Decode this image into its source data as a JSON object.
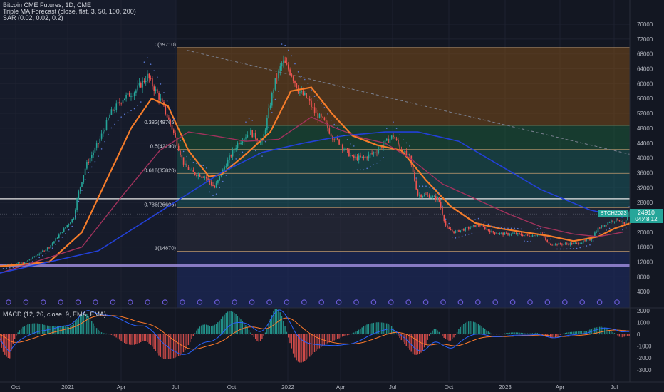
{
  "legend": {
    "title": "Bitcoin CME Futures, 1D, CME",
    "indicator1": "Triple MA Forecast (close, flat, 3, 50, 100, 200)",
    "indicator2": "SAR (0.02, 0.02, 0.2)"
  },
  "macd_label": "MACD (12, 26, close, 9, EMA, EMA)",
  "price_tag": {
    "symbol": "BTCH2023",
    "price": "24910",
    "countdown": "04:48:12"
  },
  "colors": {
    "background": "#131722",
    "grid": "#1e2230",
    "up": "#26a69a",
    "down": "#ef5350",
    "ma_fast": "#f57c2a",
    "ma_mid": "#a1325c",
    "ma_slow": "#2240d8",
    "sar": "#5b7ad8",
    "macd_line": "#2962ff",
    "signal_line": "#ff7a2b",
    "price_tag": "#26a69a",
    "axis_text": "#b2b5be"
  },
  "chart_data": [
    {
      "type": "line",
      "title": "Bitcoin CME Futures, 1D, CME",
      "yaxis_ticks": [
        4000,
        8000,
        12000,
        16000,
        20000,
        24000,
        28000,
        32000,
        36000,
        40000,
        44000,
        48000,
        52000,
        56000,
        60000,
        64000,
        68000,
        72000,
        76000
      ],
      "xaxis_ticks": [
        "Oct",
        "2021",
        "Apr",
        "Jul",
        "Oct",
        "2022",
        "Apr",
        "Jul",
        "Oct",
        "2023",
        "Apr",
        "Jul"
      ],
      "ylim": [
        0,
        80000
      ],
      "grid": true,
      "series": [
        {
          "values": [
            [
              0,
              11000
            ],
            [
              30,
              11800
            ],
            [
              60,
              16000
            ],
            [
              90,
              24000
            ],
            [
              95,
              30000
            ],
            [
              105,
              38000
            ],
            [
              120,
              44000
            ],
            [
              135,
              52000
            ],
            [
              150,
              56000
            ],
            [
              165,
              58000
            ],
            [
              180,
              62000
            ],
            [
              195,
              56000
            ],
            [
              210,
              48000
            ],
            [
              225,
              38000
            ],
            [
              235,
              36000
            ],
            [
              250,
              35000
            ],
            [
              262,
              32000
            ],
            [
              275,
              38000
            ],
            [
              290,
              44000
            ],
            [
              305,
              47000
            ],
            [
              320,
              44000
            ],
            [
              335,
              60000
            ],
            [
              345,
              66000
            ],
            [
              355,
              63000
            ],
            [
              365,
              58000
            ],
            [
              375,
              56000
            ],
            [
              385,
              52000
            ],
            [
              395,
              50000
            ],
            [
              405,
              46000
            ],
            [
              415,
              44000
            ],
            [
              430,
              40000
            ],
            [
              445,
              40000
            ],
            [
              460,
              42000
            ],
            [
              470,
              44000
            ],
            [
              480,
              46000
            ],
            [
              490,
              42000
            ],
            [
              500,
              40000
            ],
            [
              510,
              30000
            ],
            [
              520,
              30000
            ],
            [
              535,
              29000
            ],
            [
              545,
              21000
            ],
            [
              555,
              20000
            ],
            [
              570,
              21000
            ],
            [
              585,
              22000
            ],
            [
              600,
              20000
            ],
            [
              615,
              19500
            ],
            [
              630,
              19500
            ],
            [
              645,
              19000
            ],
            [
              660,
              19500
            ],
            [
              670,
              16800
            ],
            [
              690,
              16800
            ],
            [
              705,
              17000
            ],
            [
              720,
              18000
            ],
            [
              730,
              21000
            ],
            [
              745,
              23000
            ],
            [
              755,
              23500
            ],
            [
              762,
              22000
            ],
            [
              768,
              24900
            ]
          ]
        },
        {
          "values": [
            [
              0,
              10800
            ],
            [
              60,
              12000
            ],
            [
              100,
              20000
            ],
            [
              130,
              34000
            ],
            [
              160,
              48000
            ],
            [
              185,
              56000
            ],
            [
              205,
              54000
            ],
            [
              230,
              42000
            ],
            [
              255,
              35000
            ],
            [
              270,
              35500
            ],
            [
              300,
              41000
            ],
            [
              330,
              47000
            ],
            [
              355,
              58000
            ],
            [
              380,
              59000
            ],
            [
              405,
              52000
            ],
            [
              430,
              46000
            ],
            [
              460,
              43500
            ],
            [
              490,
              42000
            ],
            [
              520,
              34000
            ],
            [
              550,
              27000
            ],
            [
              580,
              22500
            ],
            [
              610,
              21000
            ],
            [
              640,
              20000
            ],
            [
              670,
              19000
            ],
            [
              700,
              17600
            ],
            [
              730,
              18800
            ],
            [
              750,
              21000
            ],
            [
              770,
              22500
            ]
          ]
        },
        {
          "values": [
            [
              0,
              9000
            ],
            [
              100,
              16000
            ],
            [
              150,
              30000
            ],
            [
              195,
              42000
            ],
            [
              230,
              47000
            ],
            [
              260,
              46000
            ],
            [
              300,
              44500
            ],
            [
              340,
              45000
            ],
            [
              380,
              51000
            ],
            [
              410,
              48000
            ],
            [
              440,
              45500
            ],
            [
              470,
              44000
            ],
            [
              500,
              40000
            ],
            [
              540,
              33000
            ],
            [
              580,
              29000
            ],
            [
              620,
              25000
            ],
            [
              660,
              21500
            ],
            [
              700,
              19500
            ],
            [
              730,
              18800
            ],
            [
              760,
              20000
            ]
          ]
        },
        {
          "values": [
            [
              0,
              9000
            ],
            [
              120,
              15000
            ],
            [
              170,
              22000
            ],
            [
              220,
              29000
            ],
            [
              270,
              36000
            ],
            [
              320,
              41500
            ],
            [
              370,
              44000
            ],
            [
              420,
              46000
            ],
            [
              470,
              47000
            ],
            [
              510,
              47000
            ],
            [
              560,
              44500
            ],
            [
              610,
              38000
            ],
            [
              660,
              31500
            ],
            [
              720,
              26000
            ],
            [
              760,
              24000
            ]
          ]
        }
      ],
      "fibonacci": [
        {
          "label": "0(69710)",
          "price": 69710
        },
        {
          "label": "0.382(48765)",
          "price": 48765
        },
        {
          "label": "0.5(42290)",
          "price": 42290
        },
        {
          "label": "0.618(35820)",
          "price": 35820
        },
        {
          "label": "0.786(26605)",
          "price": 26605
        },
        {
          "label": "1(14870)",
          "price": 14870
        }
      ],
      "horizontal_level": 29000,
      "support_level": 11000
    },
    {
      "type": "bar",
      "title": "MACD (12, 26, close, 9, EMA, EMA)",
      "yaxis_ticks": [
        -3000,
        -2000,
        -1000,
        0,
        1000,
        2000
      ],
      "ylim": [
        -4000,
        2100
      ]
    }
  ]
}
